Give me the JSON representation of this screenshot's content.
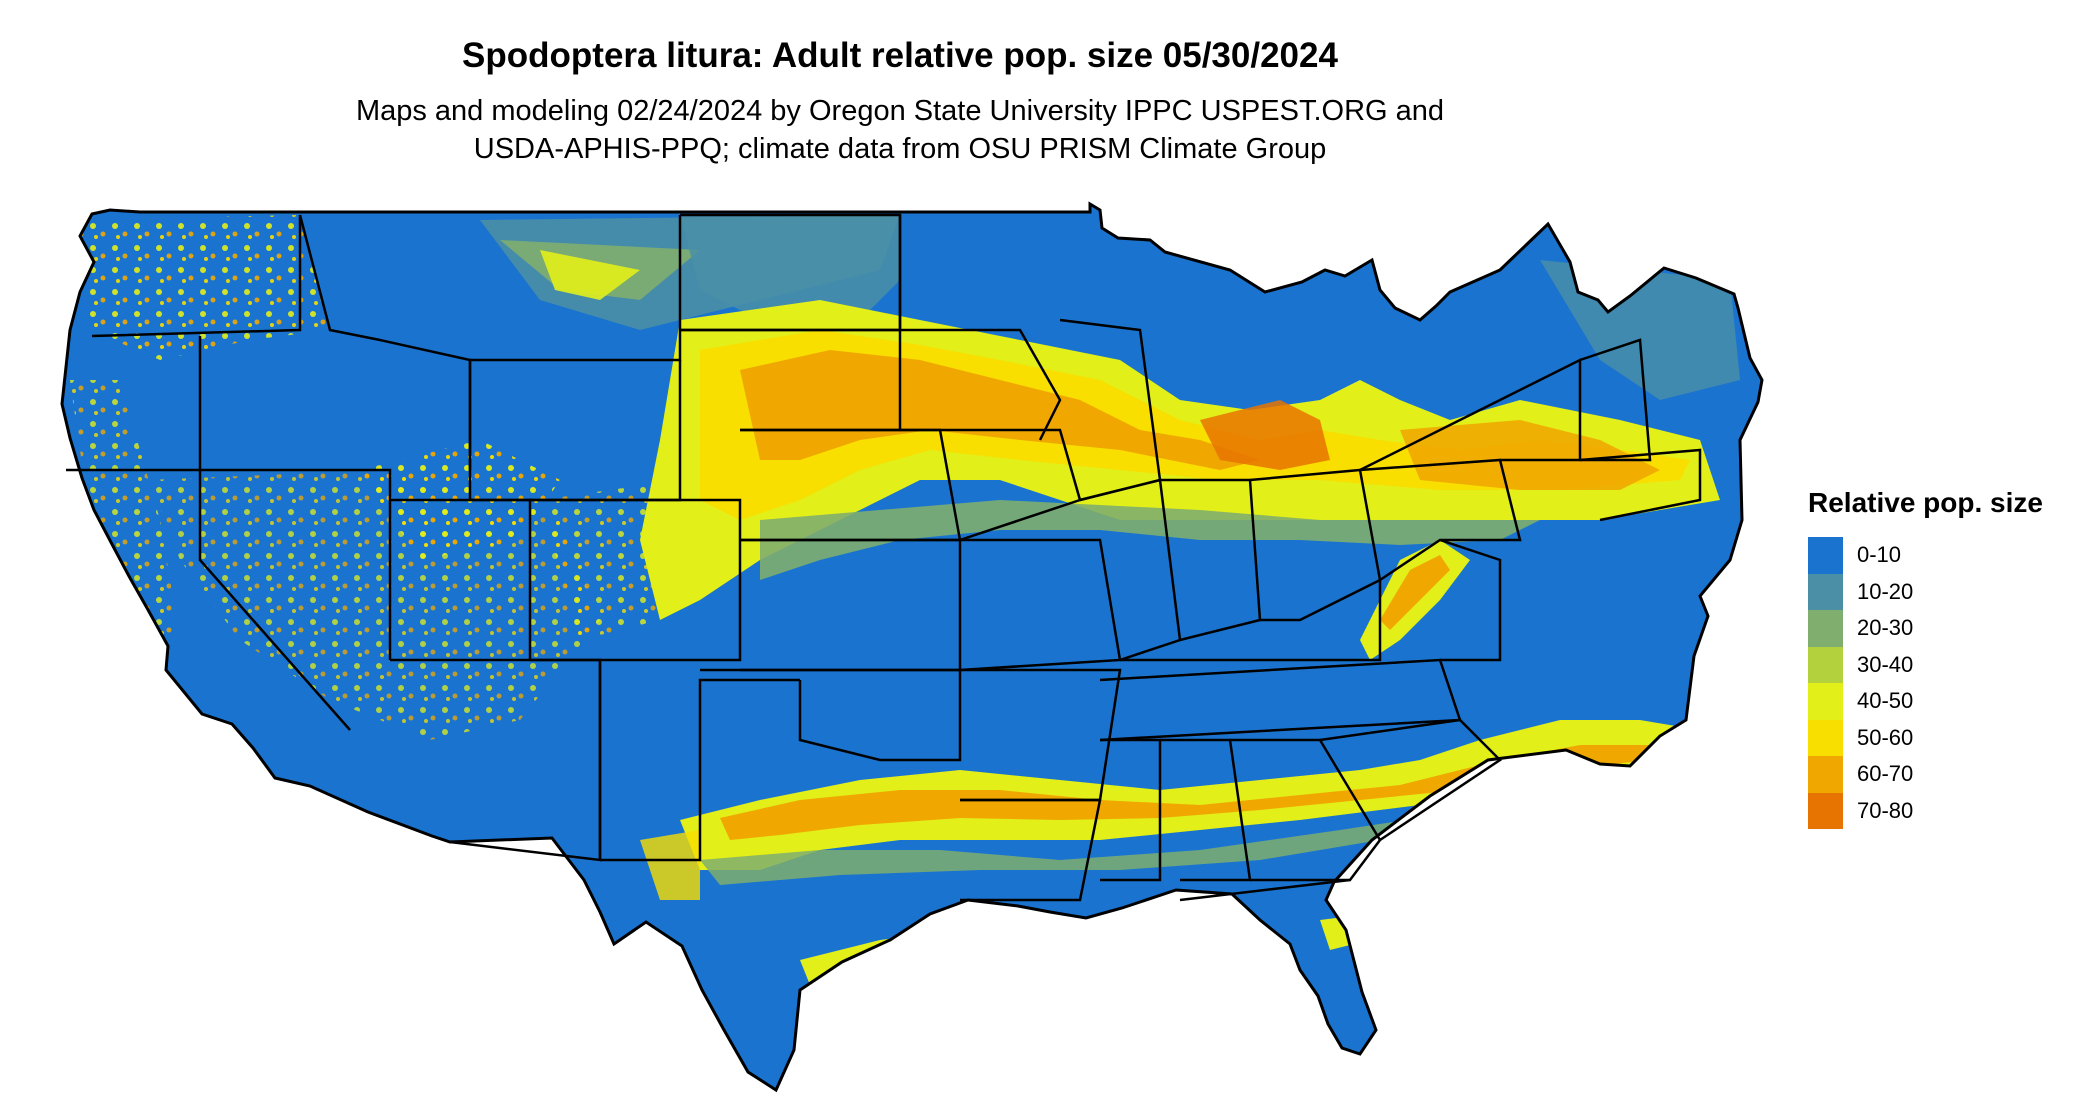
{
  "title": "Spodoptera litura: Adult relative pop. size 05/30/2024",
  "subtitle_line1": "Maps and modeling 02/24/2024 by Oregon State University IPPC USPEST.ORG and",
  "subtitle_line2": "USDA-APHIS-PPQ; climate data from OSU PRISM Climate Group",
  "legend": {
    "title": "Relative pop. size",
    "items": [
      {
        "label": "0-10",
        "color": "#1a74cf"
      },
      {
        "label": "10-20",
        "color": "#4a8fa6"
      },
      {
        "label": "20-30",
        "color": "#7fae6e"
      },
      {
        "label": "30-40",
        "color": "#b2d13c"
      },
      {
        "label": "40-50",
        "color": "#e2ef18"
      },
      {
        "label": "50-60",
        "color": "#f8df00"
      },
      {
        "label": "60-70",
        "color": "#f0a800"
      },
      {
        "label": "70-80",
        "color": "#e77400"
      }
    ]
  },
  "map": {
    "region": "contiguous-united-states",
    "base_color": "#1a74cf",
    "border_color": "#000000"
  }
}
